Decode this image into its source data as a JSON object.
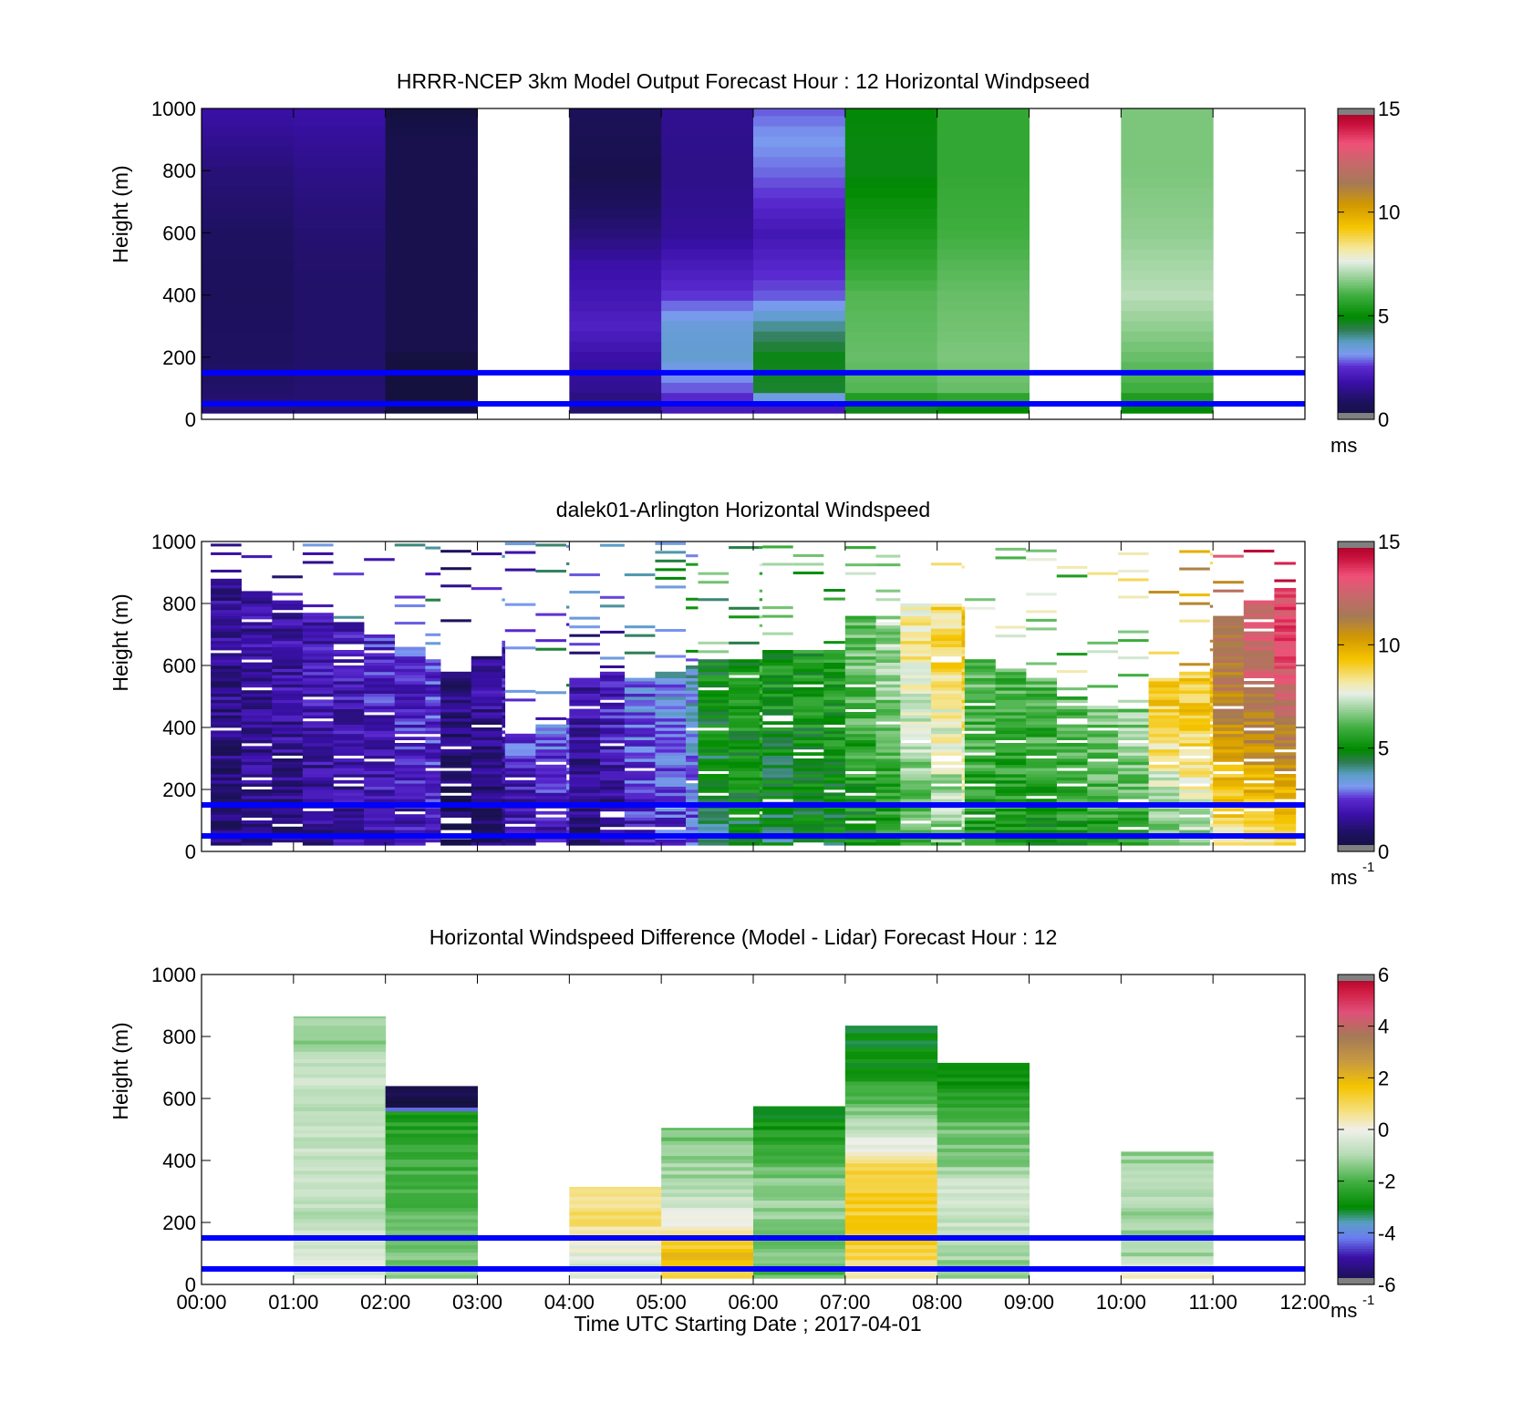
{
  "figure": {
    "xlabel": "Time UTC  Starting Date ; 2017-04-01",
    "x_ticks": [
      "00:00",
      "01:00",
      "02:00",
      "03:00",
      "04:00",
      "05:00",
      "06:00",
      "07:00",
      "08:00",
      "09:00",
      "10:00",
      "11:00",
      "12:00"
    ],
    "reference_line_color": "#0000ff",
    "reference_line_heights_m": [
      50,
      150
    ]
  },
  "chart_data": [
    {
      "type": "heatmap",
      "title": "HRRR-NCEP 3km Model Output   Forecast Hour : 12 Horizontal Windpseed",
      "ylabel": "Height (m)",
      "xlim_hours": [
        0,
        12
      ],
      "ylim": [
        0,
        1000
      ],
      "y_ticks": [
        "0",
        "200",
        "400",
        "600",
        "800",
        "1000"
      ],
      "colorbar": {
        "range": [
          0,
          15
        ],
        "ticks": [
          "0",
          "5",
          "10",
          "15"
        ],
        "unit": "ms",
        "unit_sup": ""
      },
      "columns": [
        {
          "hour": 0,
          "speed_by_height": [
            [
              30,
              1.2
            ],
            [
              100,
              1.0
            ],
            [
              200,
              0.9
            ],
            [
              400,
              0.8
            ],
            [
              600,
              0.9
            ],
            [
              800,
              1.2
            ],
            [
              1000,
              1.8
            ]
          ]
        },
        {
          "hour": 1,
          "speed_by_height": [
            [
              30,
              1.1
            ],
            [
              100,
              1.1
            ],
            [
              200,
              1.0
            ],
            [
              400,
              1.0
            ],
            [
              600,
              1.1
            ],
            [
              800,
              1.4
            ],
            [
              1000,
              1.8
            ]
          ]
        },
        {
          "hour": 2,
          "speed_by_height": [
            [
              30,
              0.0
            ],
            [
              200,
              0.0
            ],
            [
              210,
              0.4
            ],
            [
              400,
              0.4
            ],
            [
              600,
              0.4
            ],
            [
              900,
              0.4
            ],
            [
              1000,
              0.0
            ]
          ]
        },
        {
          "hour": 3,
          "speed_by_height": []
        },
        {
          "hour": 4,
          "speed_by_height": [
            [
              30,
              1.0
            ],
            [
              100,
              1.5
            ],
            [
              200,
              1.8
            ],
            [
              300,
              2.3
            ],
            [
              400,
              2.0
            ],
            [
              500,
              1.8
            ],
            [
              600,
              1.2
            ],
            [
              700,
              0.8
            ],
            [
              800,
              0.4
            ],
            [
              1000,
              0.7
            ]
          ]
        },
        {
          "hour": 5,
          "speed_by_height": [
            [
              30,
              2.0
            ],
            [
              100,
              2.8
            ],
            [
              200,
              3.6
            ],
            [
              300,
              3.5
            ],
            [
              400,
              2.6
            ],
            [
              600,
              1.6
            ],
            [
              800,
              1.4
            ],
            [
              1000,
              1.5
            ]
          ]
        },
        {
          "hour": 6,
          "speed_by_height": [
            [
              30,
              1.8
            ],
            [
              100,
              4.6
            ],
            [
              200,
              4.8
            ],
            [
              300,
              4.0
            ],
            [
              400,
              2.8
            ],
            [
              600,
              2.0
            ],
            [
              700,
              2.5
            ],
            [
              800,
              2.9
            ],
            [
              900,
              3.2
            ],
            [
              1000,
              2.8
            ]
          ]
        },
        {
          "hour": 7,
          "speed_by_height": [
            [
              30,
              4.6
            ],
            [
              100,
              6.2
            ],
            [
              200,
              6.4
            ],
            [
              400,
              6.2
            ],
            [
              600,
              5.4
            ],
            [
              800,
              4.8
            ],
            [
              1000,
              4.9
            ]
          ]
        },
        {
          "hour": 8,
          "speed_by_height": [
            [
              30,
              4.8
            ],
            [
              100,
              6.4
            ],
            [
              200,
              6.6
            ],
            [
              400,
              6.4
            ],
            [
              600,
              6.0
            ],
            [
              800,
              5.8
            ],
            [
              1000,
              5.8
            ]
          ]
        },
        {
          "hour": 9,
          "speed_by_height": []
        },
        {
          "hour": 10,
          "speed_by_height": [
            [
              30,
              4.8
            ],
            [
              100,
              6.0
            ],
            [
              200,
              6.4
            ],
            [
              400,
              7.2
            ],
            [
              600,
              6.8
            ],
            [
              800,
              6.6
            ],
            [
              1000,
              6.6
            ]
          ]
        },
        {
          "hour": 11,
          "speed_by_height": []
        }
      ]
    },
    {
      "type": "heatmap",
      "title": "dalek01-Arlington  Horizontal Windspeed",
      "ylabel": "Height (m)",
      "xlim_hours": [
        0,
        12
      ],
      "ylim": [
        0,
        1000
      ],
      "y_ticks": [
        "0",
        "200",
        "400",
        "600",
        "800",
        "1000"
      ],
      "colorbar": {
        "range": [
          0,
          15
        ],
        "ticks": [
          "0",
          "5",
          "10",
          "15"
        ],
        "unit": "ms",
        "unit_sup": "-1"
      },
      "groups": [
        {
          "hours": [
            0.1,
            2.6
          ],
          "top_m": [
            880,
            600
          ],
          "speed_low": [
            1.0,
            2.2
          ],
          "speed_high": [
            1.6,
            2.6
          ]
        },
        {
          "hours": [
            2.6,
            3.3
          ],
          "top_m": [
            580,
            680
          ],
          "speed_low": [
            0.6,
            1.4
          ],
          "speed_high": [
            1.2,
            2.0
          ]
        },
        {
          "hours": [
            3.3,
            4.0
          ],
          "top_m": [
            380,
            430
          ],
          "speed_low": [
            1.6,
            2.0
          ],
          "speed_high": [
            2.4,
            3.0
          ]
        },
        {
          "hours": [
            4.0,
            4.6
          ],
          "top_m": [
            560,
            580
          ],
          "speed_low": [
            1.2,
            1.6
          ],
          "speed_high": [
            1.8,
            2.4
          ]
        },
        {
          "hours": [
            4.6,
            5.4
          ],
          "top_m": [
            560,
            600
          ],
          "speed_low": [
            2.0,
            2.6
          ],
          "speed_high": [
            3.0,
            3.6
          ]
        },
        {
          "hours": [
            5.4,
            6.1
          ],
          "top_m": [
            620,
            620
          ],
          "speed_low": [
            4.2,
            5.0
          ],
          "speed_high": [
            5.0,
            5.6
          ]
        },
        {
          "hours": [
            6.1,
            7.0
          ],
          "top_m": [
            650,
            650
          ],
          "speed_low": [
            4.4,
            4.8
          ],
          "speed_high": [
            5.2,
            5.4
          ]
        },
        {
          "hours": [
            7.0,
            7.6
          ],
          "top_m": [
            760,
            760
          ],
          "speed_low": [
            4.8,
            5.4
          ],
          "speed_high": [
            6.4,
            7.4
          ]
        },
        {
          "hours": [
            7.6,
            8.3
          ],
          "top_m": [
            800,
            780
          ],
          "speed_low": [
            5.8,
            6.8
          ],
          "speed_high": [
            8.2,
            9.2
          ]
        },
        {
          "hours": [
            8.3,
            9.3
          ],
          "top_m": [
            620,
            520
          ],
          "speed_low": [
            5.2,
            5.0
          ],
          "speed_high": [
            6.2,
            6.0
          ]
        },
        {
          "hours": [
            9.3,
            10.3
          ],
          "top_m": [
            500,
            440
          ],
          "speed_low": [
            5.2,
            5.8
          ],
          "speed_high": [
            6.2,
            7.0
          ]
        },
        {
          "hours": [
            10.3,
            11.0
          ],
          "top_m": [
            560,
            600
          ],
          "speed_low": [
            6.2,
            7.2
          ],
          "speed_high": [
            9.0,
            9.4
          ]
        },
        {
          "hours": [
            11.0,
            11.9
          ],
          "top_m": [
            760,
            880
          ],
          "speed_low": [
            8.2,
            8.8
          ],
          "speed_high": [
            11.5,
            14.0
          ]
        }
      ]
    },
    {
      "type": "heatmap",
      "title": "Horizontal Windspeed Difference (Model - Lidar) Forecast Hour : 12",
      "ylabel": "Height (m)",
      "xlim_hours": [
        0,
        12
      ],
      "ylim": [
        0,
        1000
      ],
      "y_ticks": [
        "0",
        "200",
        "400",
        "600",
        "800",
        "1000"
      ],
      "colorbar": {
        "range": [
          -6,
          6
        ],
        "ticks": [
          "-6",
          "-4",
          "-2",
          "0",
          "2",
          "4",
          "6"
        ],
        "unit": "ms",
        "unit_sup": "-1"
      },
      "columns": [
        {
          "hour": 1,
          "diff_by_height": [
            [
              30,
              -0.2
            ],
            [
              100,
              -0.4
            ],
            [
              200,
              -0.8
            ],
            [
              400,
              -0.7
            ],
            [
              600,
              -0.9
            ],
            [
              700,
              -0.5
            ],
            [
              800,
              -1.6
            ],
            [
              865,
              -1.2
            ]
          ]
        },
        {
          "hour": 2,
          "diff_by_height": [
            [
              30,
              -1.4
            ],
            [
              150,
              -1.6
            ],
            [
              300,
              -2.0
            ],
            [
              450,
              -2.2
            ],
            [
              560,
              -2.6
            ],
            [
              570,
              -6.0
            ],
            [
              640,
              -6.0
            ]
          ]
        },
        {
          "hour": 4,
          "diff_by_height": [
            [
              30,
              -0.6
            ],
            [
              100,
              -0.2
            ],
            [
              150,
              0.3
            ],
            [
              200,
              0.8
            ],
            [
              315,
              0.8
            ]
          ]
        },
        {
          "hour": 5,
          "diff_by_height": [
            [
              30,
              1.4
            ],
            [
              100,
              1.8
            ],
            [
              200,
              0.2
            ],
            [
              300,
              -1.0
            ],
            [
              400,
              -1.2
            ],
            [
              505,
              -1.6
            ]
          ]
        },
        {
          "hour": 6,
          "diff_by_height": [
            [
              30,
              -1.8
            ],
            [
              150,
              -1.4
            ],
            [
              300,
              -1.2
            ],
            [
              400,
              -1.8
            ],
            [
              500,
              -2.6
            ],
            [
              575,
              -3.0
            ]
          ]
        },
        {
          "hour": 7,
          "diff_by_height": [
            [
              30,
              0.4
            ],
            [
              100,
              1.2
            ],
            [
              200,
              1.4
            ],
            [
              380,
              1.2
            ],
            [
              450,
              -0.2
            ],
            [
              600,
              -1.8
            ],
            [
              700,
              -2.8
            ],
            [
              835,
              -3.0
            ]
          ]
        },
        {
          "hour": 8,
          "diff_by_height": [
            [
              30,
              -1.4
            ],
            [
              150,
              -0.8
            ],
            [
              300,
              -0.4
            ],
            [
              400,
              -1.4
            ],
            [
              500,
              -1.6
            ],
            [
              645,
              -2.8
            ],
            [
              715,
              -3.2
            ]
          ]
        },
        {
          "hour": 10,
          "diff_by_height": [
            [
              30,
              0.6
            ],
            [
              100,
              -1.2
            ],
            [
              200,
              -1.2
            ],
            [
              300,
              -1.0
            ],
            [
              430,
              -1.2
            ]
          ]
        }
      ]
    }
  ]
}
